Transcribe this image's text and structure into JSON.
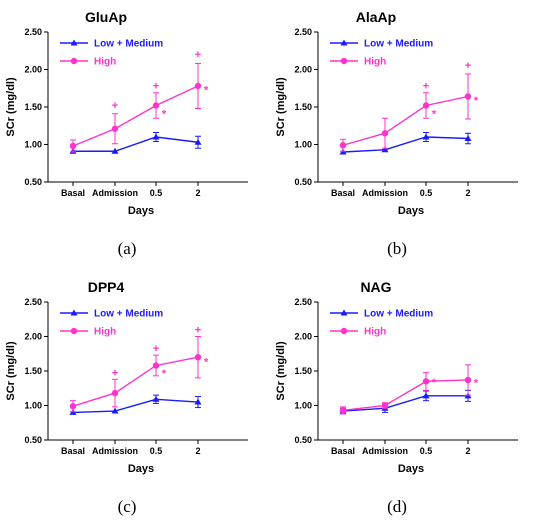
{
  "colors": {
    "low_medium": "#1a1aff",
    "high": "#ff33cc",
    "axis": "#000000"
  },
  "chart_data": [
    {
      "type": "line",
      "title": "GluAp",
      "panel_label": "(a)",
      "xlabel": "Days",
      "ylabel": "SCr (mg/dl)",
      "categories": [
        "Basal",
        "Admission",
        "0.5",
        "2"
      ],
      "ylim": [
        0.5,
        2.5
      ],
      "yticks": [
        "0.50",
        "1.00",
        "1.50",
        "2.00",
        "2.50"
      ],
      "legend_position": "top-left",
      "series": [
        {
          "name": "Low + Medium",
          "color": "#1a1aff",
          "marker": "triangle",
          "values": [
            0.91,
            0.91,
            1.1,
            1.03
          ],
          "err": [
            0.0,
            0.0,
            0.06,
            0.08
          ]
        },
        {
          "name": "High",
          "color": "#ff33cc",
          "marker": "circle",
          "values": [
            0.98,
            1.21,
            1.52,
            1.78
          ],
          "err": [
            0.08,
            0.2,
            0.17,
            0.3
          ]
        }
      ],
      "annotations": [
        {
          "x": 1,
          "y": 1.53,
          "text": "+"
        },
        {
          "x": 2,
          "y": 1.79,
          "text": "+"
        },
        {
          "x": 2,
          "y": 1.44,
          "text": "*"
        },
        {
          "x": 3,
          "y": 2.21,
          "text": "+"
        },
        {
          "x": 3,
          "y": 1.76,
          "text": "*"
        }
      ]
    },
    {
      "type": "line",
      "title": "AlaAp",
      "panel_label": "(b)",
      "xlabel": "Days",
      "ylabel": "SCr (mg/dl)",
      "categories": [
        "Basal",
        "Admission",
        "0.5",
        "2"
      ],
      "ylim": [
        0.5,
        2.5
      ],
      "yticks": [
        "0.50",
        "1.00",
        "1.50",
        "2.00",
        "2.50"
      ],
      "legend_position": "top-left",
      "series": [
        {
          "name": "Low + Medium",
          "color": "#1a1aff",
          "marker": "triangle",
          "values": [
            0.9,
            0.93,
            1.1,
            1.08
          ],
          "err": [
            0.0,
            0.0,
            0.06,
            0.07
          ]
        },
        {
          "name": "High",
          "color": "#ff33cc",
          "marker": "circle",
          "values": [
            0.99,
            1.15,
            1.52,
            1.64
          ],
          "err": [
            0.08,
            0.2,
            0.17,
            0.3
          ]
        }
      ],
      "annotations": [
        {
          "x": 2,
          "y": 1.79,
          "text": "+"
        },
        {
          "x": 2,
          "y": 1.44,
          "text": "*"
        },
        {
          "x": 3,
          "y": 2.06,
          "text": "+"
        },
        {
          "x": 3,
          "y": 1.62,
          "text": "*"
        }
      ]
    },
    {
      "type": "line",
      "title": "DPP4",
      "panel_label": "(c)",
      "xlabel": "Days",
      "ylabel": "SCr (mg/dl)",
      "categories": [
        "Basal",
        "Admission",
        "0.5",
        "2"
      ],
      "ylim": [
        0.5,
        2.5
      ],
      "yticks": [
        "0.50",
        "1.00",
        "1.50",
        "2.00",
        "2.50"
      ],
      "legend_position": "top-left",
      "series": [
        {
          "name": "Low + Medium",
          "color": "#1a1aff",
          "marker": "triangle",
          "values": [
            0.9,
            0.92,
            1.09,
            1.05
          ],
          "err": [
            0.0,
            0.0,
            0.06,
            0.08
          ]
        },
        {
          "name": "High",
          "color": "#ff33cc",
          "marker": "circle",
          "values": [
            0.99,
            1.18,
            1.58,
            1.7
          ],
          "err": [
            0.08,
            0.2,
            0.15,
            0.3
          ]
        }
      ],
      "annotations": [
        {
          "x": 1,
          "y": 1.48,
          "text": "+"
        },
        {
          "x": 2,
          "y": 1.83,
          "text": "+"
        },
        {
          "x": 2,
          "y": 1.5,
          "text": "*"
        },
        {
          "x": 3,
          "y": 2.1,
          "text": "+"
        },
        {
          "x": 3,
          "y": 1.67,
          "text": "*"
        }
      ]
    },
    {
      "type": "line",
      "title": "NAG",
      "panel_label": "(d)",
      "xlabel": "Days",
      "ylabel": "SCr (mg/dl)",
      "categories": [
        "Basal",
        "Admission",
        "0.5",
        "2"
      ],
      "ylim": [
        0.5,
        2.5
      ],
      "yticks": [
        "0.50",
        "1.00",
        "1.50",
        "2.00",
        "2.50"
      ],
      "legend_position": "top-left",
      "series": [
        {
          "name": "Low + Medium",
          "color": "#1a1aff",
          "marker": "triangle",
          "values": [
            0.92,
            0.96,
            1.14,
            1.14
          ],
          "err": [
            0.04,
            0.06,
            0.07,
            0.08
          ]
        },
        {
          "name": "High",
          "color": "#ff33cc",
          "marker": "circle",
          "values": [
            0.93,
            1.0,
            1.35,
            1.37
          ],
          "err": [
            0.05,
            0.04,
            0.13,
            0.22
          ]
        }
      ],
      "annotations": [
        {
          "x": 2,
          "y": 1.37,
          "text": "*"
        },
        {
          "x": 3,
          "y": 1.36,
          "text": "*"
        }
      ]
    }
  ]
}
